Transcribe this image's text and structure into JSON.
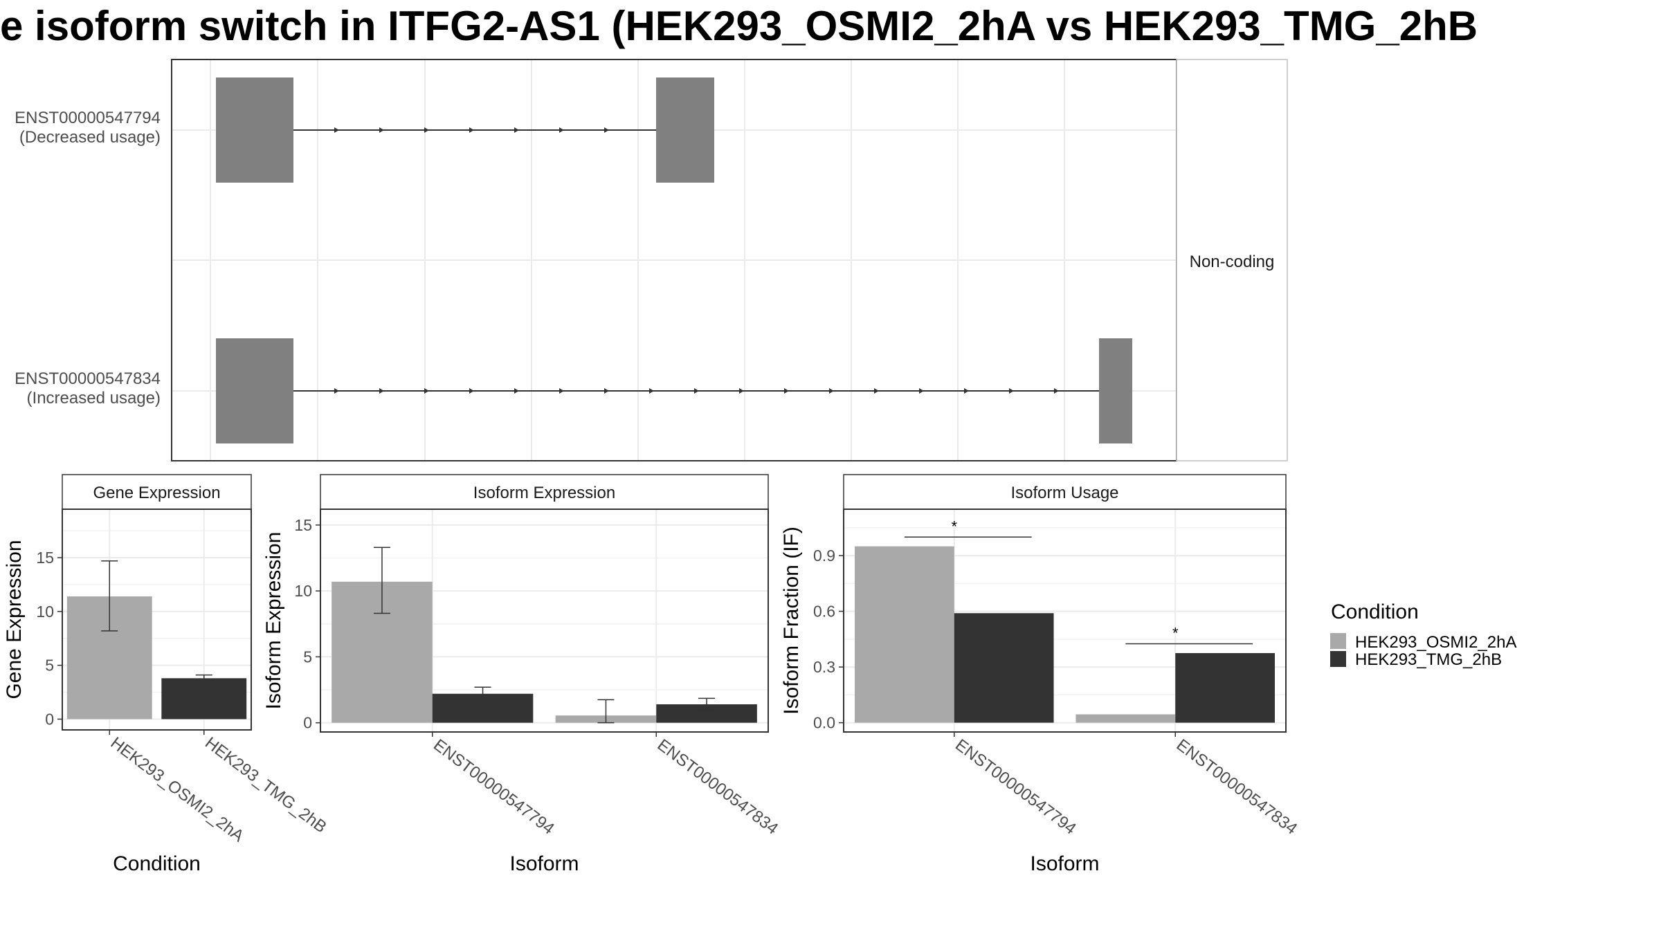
{
  "title": "e isoform switch in ITFG2-AS1 (HEK293_OSMI2_2hA vs HEK293_TMG_2hB",
  "colors": {
    "HEK293_OSMI2_2hA": "#a9a9a9",
    "HEK293_TMG_2hB": "#333333",
    "exon": "#808080"
  },
  "legend": {
    "title": "Condition",
    "items": [
      "HEK293_OSMI2_2hA",
      "HEK293_TMG_2hB"
    ],
    "placement": "right"
  },
  "chart_data": [
    {
      "type": "gene-structure",
      "facet_label": "Non-coding",
      "transcripts": [
        {
          "id": "ENST00000547794",
          "note": "(Decreased usage)",
          "exon_count": 2
        },
        {
          "id": "ENST00000547834",
          "note": "(Increased usage)",
          "exon_count": 2
        }
      ]
    },
    {
      "type": "bar",
      "facet_title": "Gene Expression",
      "xlabel": "Condition",
      "ylabel": "Gene Expression",
      "ylim": [
        -1,
        19.5
      ],
      "yticks": [
        0,
        5,
        10,
        15
      ],
      "categories": [
        "HEK293_OSMI2_2hA",
        "HEK293_TMG_2hB"
      ],
      "values": [
        11.4,
        3.8
      ],
      "errors": [
        [
          8.2,
          14.7
        ],
        [
          3.6,
          4.1
        ]
      ]
    },
    {
      "type": "bar",
      "facet_title": "Isoform Expression",
      "xlabel": "Isoform",
      "ylabel": "Isoform Expression",
      "ylim": [
        -0.7,
        16.2
      ],
      "yticks": [
        0,
        5,
        10,
        15
      ],
      "categories": [
        "ENST00000547794",
        "ENST00000547834"
      ],
      "series": [
        {
          "name": "HEK293_OSMI2_2hA",
          "values": [
            10.7,
            0.55
          ],
          "errors": [
            [
              8.3,
              13.3
            ],
            [
              0.0,
              1.75
            ]
          ]
        },
        {
          "name": "HEK293_TMG_2hB",
          "values": [
            2.2,
            1.4
          ],
          "errors": [
            [
              1.7,
              2.7
            ],
            [
              1.0,
              1.85
            ]
          ]
        }
      ]
    },
    {
      "type": "bar",
      "facet_title": "Isoform Usage",
      "xlabel": "Isoform",
      "ylabel": "Isoform Fraction (IF)",
      "ylim": [
        -0.05,
        1.15
      ],
      "yticks": [
        0.0,
        0.3,
        0.6,
        0.9
      ],
      "ytick_labels": [
        "0.0",
        "0.3",
        "0.6",
        "0.9"
      ],
      "categories": [
        "ENST00000547794",
        "ENST00000547834"
      ],
      "series": [
        {
          "name": "HEK293_OSMI2_2hA",
          "values": [
            0.95,
            0.045
          ]
        },
        {
          "name": "HEK293_TMG_2hB",
          "values": [
            0.59,
            0.375
          ]
        }
      ],
      "significance": [
        {
          "category": "ENST00000547794",
          "label": "*",
          "y": 1.0
        },
        {
          "category": "ENST00000547834",
          "label": "*",
          "y": 0.425
        }
      ]
    }
  ]
}
